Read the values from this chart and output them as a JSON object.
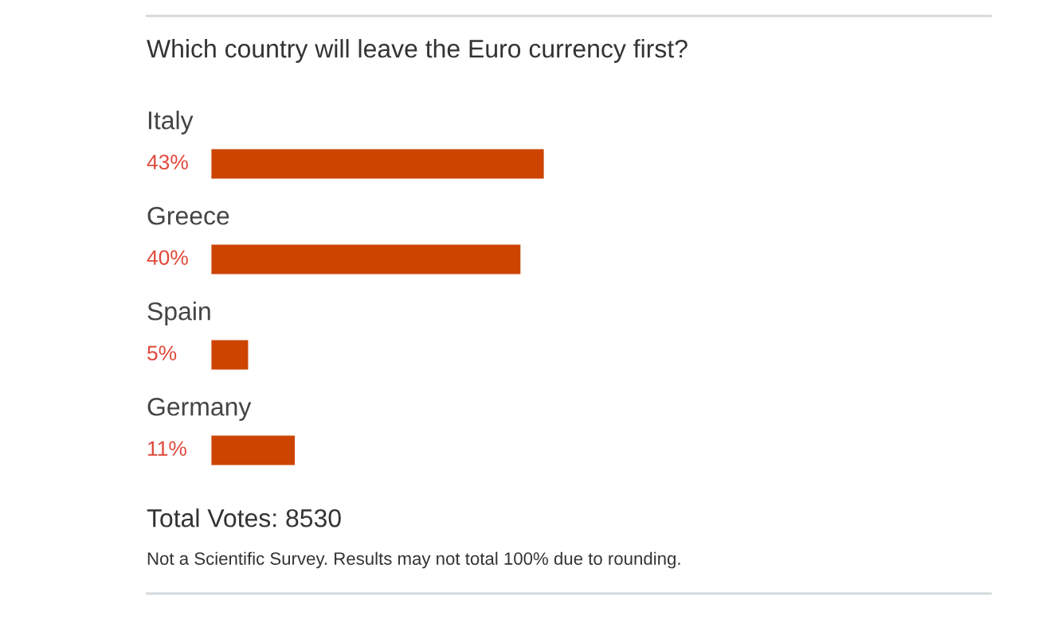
{
  "chart_data": {
    "type": "bar",
    "orientation": "horizontal",
    "title": "Which country will leave the Euro currency first?",
    "categories": [
      "Italy",
      "Greece",
      "Spain",
      "Germany"
    ],
    "values": [
      43,
      40,
      5,
      11
    ],
    "value_labels": [
      "43%",
      "40%",
      "5%",
      "11%"
    ],
    "color": "#cc4400",
    "tick_labels": false,
    "legend": false,
    "annotations": [
      "Total Votes: 8530",
      "Not a Scientific Survey. Results may not total 100% due to rounding."
    ]
  }
}
